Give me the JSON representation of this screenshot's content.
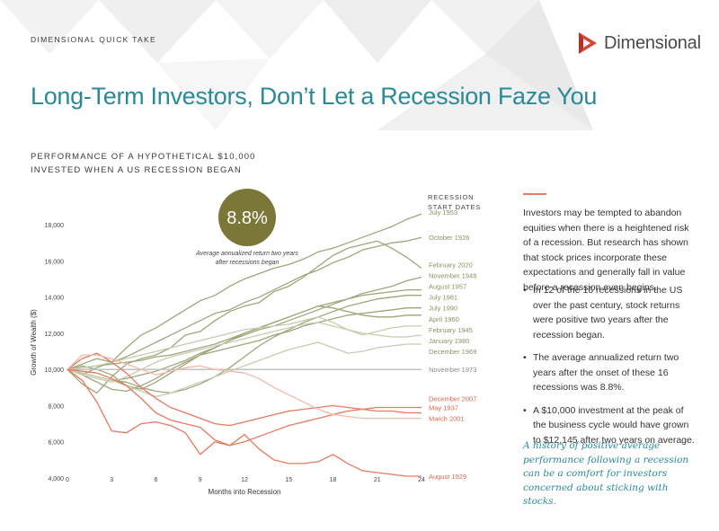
{
  "header": {
    "kicker": "DIMENSIONAL QUICK TAKE",
    "brand": "Dimensional",
    "title": "Long-Term Investors, Don’t Let a Recession Faze You"
  },
  "chart_section": {
    "heading_line1": "PERFORMANCE OF A HYPOTHETICAL $10,000",
    "heading_line2": "INVESTED WHEN A US RECESSION BEGAN"
  },
  "sidebar": {
    "intro": "Investors may be tempted to abandon equities when there is a heightened risk of a recession. But research has shown that stock prices incorporate these expectations and generally fall in value before a recession even begins.",
    "bullets": [
      "In 12 of the 16 recessions in the US over the past century, stock returns were positive two years after the recession began.",
      "The average annualized return two years after the onset of these 16 recessions was 8.8%.",
      "A $10,000 investment at the peak of the business cycle would have grown to $12,145 after two years on average."
    ],
    "quote": "A history of positive average performance following a recession can be a comfort for investors concerned about sticking with stocks."
  },
  "colors": {
    "teal": "#2a8a99",
    "positive": "#9ea679",
    "negative": "#e8785e",
    "badge": "#7b7739",
    "logo": "#d6453a"
  },
  "chart_data": {
    "type": "line",
    "xlabel": "Months into Recession",
    "ylabel": "Growth of Wealth ($)",
    "xlim": [
      0,
      24
    ],
    "ylim": [
      4000,
      19000
    ],
    "xticks": [
      0,
      3,
      6,
      9,
      12,
      15,
      18,
      21,
      24
    ],
    "yticks": [
      4000,
      6000,
      8000,
      10000,
      12000,
      14000,
      16000,
      18000
    ],
    "ytick_labels": [
      "4,000",
      "6,000",
      "8,000",
      "10,000",
      "12,000",
      "14,000",
      "16,000",
      "18,000"
    ],
    "legend_title_line1": "RECESSION",
    "legend_title_line2": "START DATES",
    "badge_value": "8.8%",
    "badge_caption_line1": "Average annualized return two years",
    "badge_caption_line2": "after recessions began",
    "series": [
      {
        "name": "July 1953",
        "group": "positive",
        "end": 18600,
        "label_value": 18700,
        "values": [
          10000,
          10300,
          10600,
          10400,
          11200,
          11900,
          12300,
          12800,
          13300,
          13800,
          14100,
          14600,
          15000,
          15300,
          15600,
          15800,
          16100,
          16500,
          16700,
          17000,
          17300,
          17600,
          17900,
          18300,
          18600
        ]
      },
      {
        "name": "October 1926",
        "group": "positive",
        "end": 17300,
        "label_value": 17300,
        "values": [
          10000,
          9700,
          10100,
          10400,
          10700,
          11100,
          11500,
          11900,
          12300,
          12700,
          13100,
          13300,
          13700,
          14000,
          14400,
          14800,
          15200,
          15500,
          15900,
          16200,
          16600,
          16800,
          17000,
          17100,
          17300
        ]
      },
      {
        "name": "February 2020",
        "group": "positive",
        "end": 15600,
        "label_value": 15800,
        "values": [
          10000,
          9200,
          8700,
          9600,
          10300,
          10600,
          10800,
          11200,
          11900,
          12100,
          12700,
          13200,
          13500,
          13700,
          14300,
          14600,
          15100,
          15700,
          16300,
          16700,
          16900,
          17100,
          16700,
          16200,
          15600
        ]
      },
      {
        "name": "November 1948",
        "group": "positive",
        "end": 15100,
        "label_value": 15200,
        "values": [
          10000,
          9800,
          9600,
          9400,
          9500,
          9700,
          9900,
          10200,
          10500,
          10900,
          11200,
          11600,
          11900,
          12200,
          12400,
          12700,
          13000,
          13300,
          13600,
          13900,
          14200,
          14400,
          14600,
          14900,
          15100
        ]
      },
      {
        "name": "August 1957",
        "group": "positive",
        "end": 14400,
        "label_value": 14600,
        "values": [
          10000,
          9700,
          9300,
          8900,
          8800,
          9100,
          9500,
          10000,
          10400,
          10800,
          11200,
          11600,
          12000,
          12300,
          12600,
          12900,
          13200,
          13500,
          13700,
          13900,
          14100,
          14200,
          14300,
          14400,
          14400
        ]
      },
      {
        "name": "July 1981",
        "group": "positive",
        "end": 14100,
        "label_value": 14000,
        "values": [
          10000,
          9800,
          9600,
          9400,
          9300,
          9000,
          8800,
          8700,
          8900,
          9200,
          9600,
          10100,
          10700,
          11300,
          11800,
          12200,
          12600,
          12900,
          13200,
          13500,
          13700,
          13900,
          14000,
          14100,
          14100
        ]
      },
      {
        "name": "July 1990",
        "group": "positive",
        "end": 13400,
        "label_value": 13400,
        "values": [
          10000,
          10200,
          10000,
          9700,
          9100,
          8900,
          9300,
          9800,
          10300,
          10800,
          11000,
          11200,
          11400,
          11600,
          11900,
          12100,
          12400,
          12600,
          12800,
          13000,
          13100,
          13200,
          13300,
          13400,
          13400
        ]
      },
      {
        "name": "April 1960",
        "group": "positive",
        "end": 13000,
        "label_value": 12800,
        "values": [
          10000,
          10100,
          10200,
          10300,
          10400,
          10500,
          10700,
          10800,
          11000,
          11200,
          11400,
          11700,
          12000,
          12300,
          12600,
          12900,
          13200,
          13500,
          13400,
          13200,
          13000,
          12900,
          12900,
          13000,
          13000
        ]
      },
      {
        "name": "February 1945",
        "group": "positive",
        "end": 12400,
        "label_value": 12200,
        "values": [
          10000,
          10100,
          10200,
          10400,
          10600,
          10800,
          11000,
          11200,
          11400,
          11600,
          11800,
          12000,
          12200,
          12300,
          12400,
          12500,
          12700,
          12900,
          12600,
          12200,
          11900,
          12100,
          12300,
          12400,
          12400
        ]
      },
      {
        "name": "January 1980",
        "group": "positive",
        "end": 11900,
        "label_value": 11600,
        "values": [
          10000,
          9700,
          9500,
          9300,
          9600,
          10000,
          10400,
          10700,
          10900,
          11100,
          11300,
          11500,
          11700,
          11900,
          12100,
          12300,
          12500,
          12600,
          12400,
          12200,
          12000,
          11900,
          11800,
          11800,
          11900
        ]
      },
      {
        "name": "December 1969",
        "group": "positive",
        "end": 11400,
        "label_value": 11000,
        "values": [
          10000,
          9800,
          9600,
          9400,
          9100,
          8800,
          8500,
          8700,
          9000,
          9300,
          9600,
          9900,
          10200,
          10500,
          10800,
          11100,
          11300,
          11500,
          11200,
          10900,
          11000,
          11200,
          11300,
          11400,
          11400
        ]
      },
      {
        "name": "November 1973",
        "group": "neutral",
        "end": 10000,
        "label_value": 10000,
        "values": [
          10000,
          10000,
          10000,
          10000,
          10000,
          10000,
          10000,
          10000,
          10000,
          10000,
          10000,
          10000,
          10000,
          10000,
          10000,
          10000,
          10000,
          10000,
          10000,
          10000,
          10000,
          10000,
          10000,
          10000,
          10000
        ]
      },
      {
        "name": "December 2007",
        "group": "negative",
        "end": 7900,
        "label_value": 8400,
        "values": [
          10000,
          9900,
          9800,
          9500,
          9100,
          8400,
          7600,
          7200,
          7000,
          6800,
          6100,
          5800,
          6000,
          6300,
          6600,
          6900,
          7100,
          7300,
          7500,
          7700,
          7800,
          7900,
          7900,
          7900,
          7900
        ]
      },
      {
        "name": "May 1937",
        "group": "negative",
        "end": 7600,
        "label_value": 7900,
        "values": [
          10000,
          10600,
          10900,
          10400,
          9800,
          9000,
          8400,
          7900,
          7600,
          7300,
          7000,
          6900,
          7100,
          7300,
          7500,
          7700,
          7800,
          7900,
          8000,
          7900,
          7800,
          7700,
          7700,
          7600,
          7600
        ]
      },
      {
        "name": "March 2001",
        "group": "negative",
        "end": 7300,
        "label_value": 7300,
        "values": [
          10000,
          10800,
          10800,
          10600,
          10300,
          10000,
          9700,
          9900,
          10100,
          10200,
          10000,
          9900,
          9800,
          9500,
          9000,
          8600,
          8200,
          7800,
          7500,
          7400,
          7300,
          7300,
          7300,
          7300,
          7300
        ]
      },
      {
        "name": "August 1929",
        "group": "negative",
        "end": 4100,
        "label_value": 4100,
        "values": [
          10000,
          9400,
          8200,
          6600,
          6500,
          7000,
          7100,
          6900,
          6500,
          5300,
          6000,
          5800,
          6400,
          5600,
          5000,
          4800,
          4800,
          4900,
          5300,
          4800,
          4400,
          4300,
          4200,
          4100,
          4100
        ]
      }
    ]
  }
}
